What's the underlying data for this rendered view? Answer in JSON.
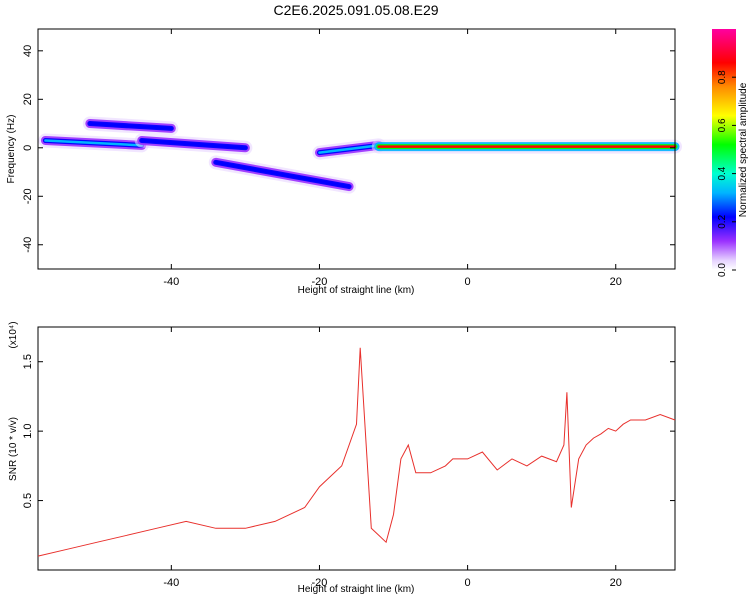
{
  "title": "C2E6.2025.091.05.08.E29",
  "chart_data": [
    {
      "type": "heatmap",
      "xlabel": "Height of straight line (km)",
      "ylabel": "Frequency (Hz)",
      "xlim": [
        -58,
        28
      ],
      "ylim": [
        -50,
        49
      ],
      "xticks": [
        -40,
        -20,
        0,
        20
      ],
      "yticks": [
        -40,
        -20,
        0,
        20,
        40
      ],
      "colorbar": {
        "label": "Normalized spectral amplitude",
        "range": [
          0,
          1
        ],
        "ticks": [
          0.0,
          0.2,
          0.4,
          0.6,
          0.8
        ],
        "tick_labels": [
          "0.0",
          "0.2",
          "0.4",
          "0.6",
          "0.8"
        ]
      },
      "features": [
        {
          "x": [
            -57,
            -44
          ],
          "y_start": 3,
          "y_end": 1,
          "intensity": 0.45
        },
        {
          "x": [
            -51,
            -40
          ],
          "y_start": 10,
          "y_end": 8,
          "intensity": 0.4
        },
        {
          "x": [
            -44,
            -30
          ],
          "y_start": 3,
          "y_end": 0,
          "intensity": 0.4
        },
        {
          "x": [
            -34,
            -16
          ],
          "y_start": -6,
          "y_end": -16,
          "intensity": 0.4
        },
        {
          "x": [
            -20,
            -12
          ],
          "y_start": -2,
          "y_end": 1,
          "intensity": 0.5
        },
        {
          "x": [
            -12,
            28
          ],
          "y_start": 0.5,
          "y_end": 0.5,
          "intensity": 0.9
        }
      ]
    },
    {
      "type": "line",
      "xlabel": "Height of straight line (km)",
      "ylabel": "SNR (10 * v/v)",
      "y_multiplier": "(x10⁴)",
      "xlim": [
        -58,
        28
      ],
      "ylim": [
        0,
        1.75
      ],
      "xticks": [
        -40,
        -20,
        0,
        20
      ],
      "yticks": [
        0.5,
        1.0,
        1.5
      ],
      "ytick_labels": [
        "0.5",
        "1.0",
        "1.5"
      ],
      "color": "#e8302c",
      "series": [
        {
          "x": [
            -58,
            -54,
            -50,
            -46,
            -42,
            -38,
            -34,
            -30,
            -26,
            -22,
            -20,
            -17,
            -15,
            -14.5,
            -13,
            -11,
            -10,
            -9,
            -8,
            -7,
            -5,
            -3,
            -2,
            0,
            2,
            4,
            6,
            8,
            10,
            12,
            13,
            13.4,
            14,
            15,
            16,
            17,
            18,
            19,
            20,
            21,
            22,
            24,
            26,
            28
          ],
          "y": [
            0.1,
            0.15,
            0.2,
            0.25,
            0.3,
            0.35,
            0.3,
            0.3,
            0.35,
            0.45,
            0.6,
            0.75,
            1.05,
            1.6,
            0.3,
            0.2,
            0.4,
            0.8,
            0.9,
            0.7,
            0.7,
            0.75,
            0.8,
            0.8,
            0.85,
            0.72,
            0.8,
            0.75,
            0.82,
            0.78,
            0.9,
            1.28,
            0.45,
            0.8,
            0.9,
            0.95,
            0.98,
            1.02,
            1.0,
            1.05,
            1.08,
            1.08,
            1.12,
            1.08
          ]
        }
      ]
    }
  ]
}
